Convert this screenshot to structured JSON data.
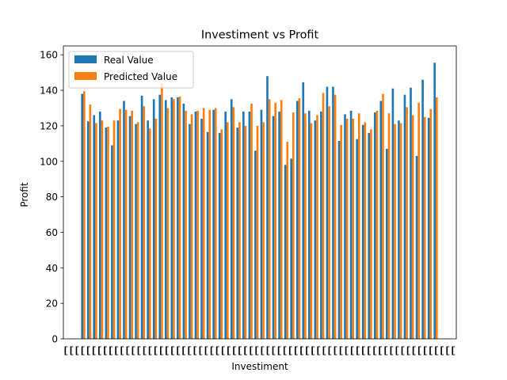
{
  "chart_data": {
    "type": "bar",
    "title": "Investiment vs Profit",
    "xlabel": "Investiment",
    "ylabel": "Profit",
    "ylim": [
      0,
      165
    ],
    "yticks": [
      0,
      20,
      40,
      60,
      80,
      100,
      120,
      140,
      160
    ],
    "legend_position": "top-left",
    "grid": false,
    "x_tick_text": "[[[[[[[[[[[[[[[[[[[[[[[[[[[[[[[[[[[[[[[[[[[[[[[[[[[[[[[[[[[[[[[[[[[[[[",
    "series": [
      {
        "name": "Real Value",
        "color": "#1f77b4",
        "values": [
          138,
          122.5,
          126,
          128,
          119,
          109,
          123,
          134,
          125.5,
          121,
          137,
          123,
          135,
          137.5,
          134.5,
          136,
          136,
          132.5,
          121,
          128,
          124,
          116.5,
          129,
          116,
          128,
          135,
          119,
          128,
          128,
          106,
          129,
          148,
          125.5,
          128,
          98,
          101.5,
          134,
          144.5,
          128.5,
          123,
          128,
          142,
          142,
          111.5,
          126.5,
          128.5,
          112.5,
          120.5,
          116,
          127.5,
          134,
          107,
          141,
          123,
          137.5,
          141.5,
          103,
          146,
          124.5,
          155.5
        ]
      },
      {
        "name": "Predicted Value",
        "color": "#ff7f0e",
        "values": [
          139.5,
          132,
          121.5,
          123,
          119.5,
          123,
          129.5,
          129,
          128.5,
          122,
          131,
          118.5,
          124,
          144,
          130,
          135,
          136.5,
          128.5,
          126.5,
          128.5,
          130,
          129,
          130,
          118,
          122,
          130.5,
          122,
          120,
          132.5,
          120,
          122,
          135,
          133,
          134.5,
          111,
          127.5,
          135.5,
          127,
          121.5,
          126,
          138.5,
          131,
          137.5,
          120.5,
          124,
          124,
          127,
          122,
          118,
          128.5,
          138,
          127,
          121,
          121.5,
          130.5,
          126,
          133,
          125,
          129.5,
          136
        ]
      }
    ]
  }
}
